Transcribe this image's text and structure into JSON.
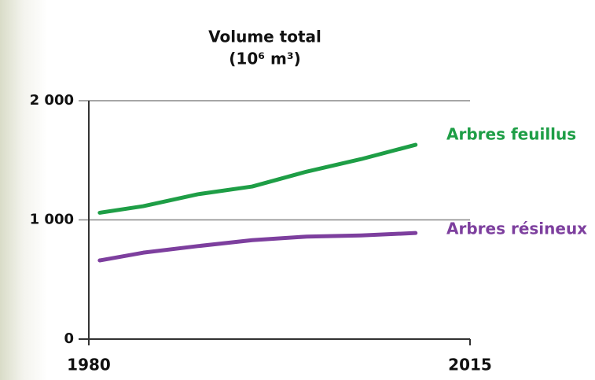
{
  "chart_data": {
    "type": "line",
    "title": "Volume total",
    "subtitle": "(10⁶ m³)",
    "x": [
      1981,
      1985,
      1990,
      1995,
      2000,
      2005,
      2010
    ],
    "series": [
      {
        "name": "Arbres feuillus",
        "color": "#1e9e46",
        "values": [
          1060,
          1115,
          1215,
          1280,
          1405,
          1510,
          1630
        ]
      },
      {
        "name": "Arbres résineux",
        "color": "#7d3f9e",
        "values": [
          660,
          725,
          780,
          830,
          860,
          870,
          890
        ]
      }
    ],
    "xlim": [
      1980,
      2015
    ],
    "xticks": [
      1980,
      2015
    ],
    "ylim": [
      0,
      2000
    ],
    "yticks": [
      {
        "value": 0,
        "label": "0"
      },
      {
        "value": 1000,
        "label": "1 000"
      },
      {
        "value": 2000,
        "label": "2 000"
      }
    ],
    "grid": true
  }
}
